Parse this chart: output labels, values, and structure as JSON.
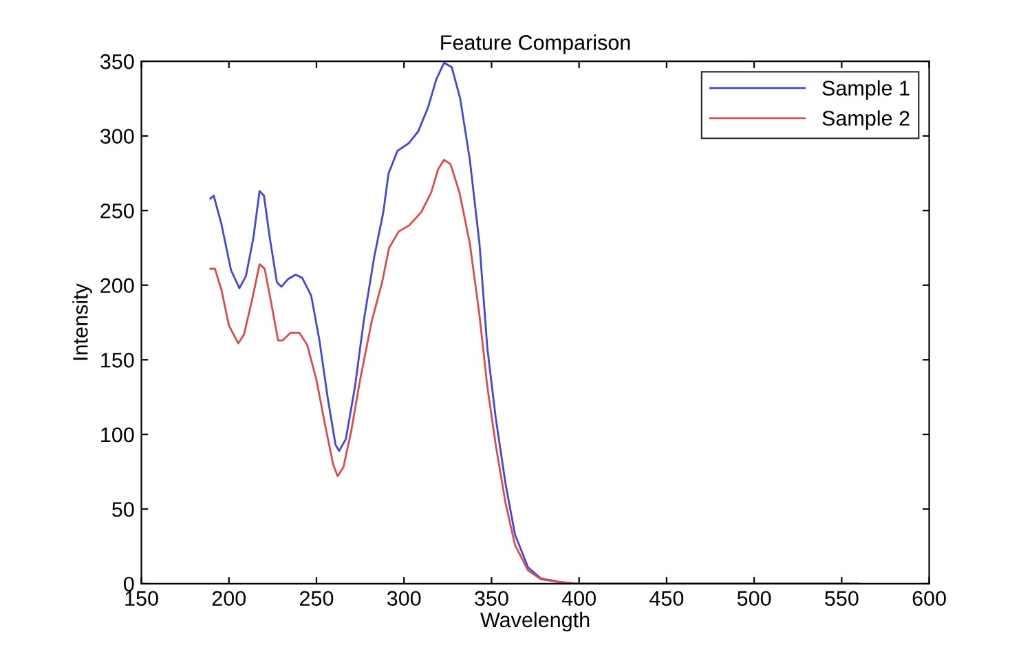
{
  "chart_data": {
    "type": "line",
    "title": "Feature Comparison",
    "xlabel": "Wavelength",
    "ylabel": "Intensity",
    "xlim": [
      150,
      600
    ],
    "xticks": [
      150,
      200,
      250,
      300,
      350,
      400,
      450,
      500,
      550,
      600
    ],
    "ylim": [
      0,
      350
    ],
    "yticks": [
      0,
      50,
      100,
      150,
      200,
      250,
      300,
      350
    ],
    "grid": false,
    "legend": "top right",
    "marker": "none",
    "line_style": "solid",
    "series": [
      {
        "name": "Sample 1",
        "color": "#4444d8",
        "x": [
          189.4,
          191.3,
          195.7,
          201.2,
          206,
          209.7,
          214,
          217.5,
          220,
          223.3,
          227.4,
          230,
          233.7,
          238,
          241.8,
          247,
          251.7,
          256.5,
          260.9,
          263,
          266.8,
          272,
          277,
          283,
          288.2,
          291.2,
          296.3,
          302.6,
          308.1,
          313.7,
          318.5,
          322.9,
          327.3,
          332.1,
          337.6,
          343.1,
          347.6,
          352.4,
          358,
          363.4,
          370.8,
          378.2,
          385.5,
          389.2,
          400,
          560
        ],
        "values": [
          258,
          260,
          241,
          210,
          198,
          206,
          232,
          263,
          260,
          232,
          202,
          199,
          204,
          207,
          205,
          193,
          163,
          124,
          93,
          89,
          97,
          132,
          176,
          219,
          249,
          275,
          290,
          295,
          303,
          319,
          338,
          349,
          346,
          325,
          284,
          228,
          158,
          111,
          67,
          33,
          11,
          3.5,
          2,
          1,
          0,
          0
        ]
      },
      {
        "name": "Sample 2",
        "color": "#d84c4c",
        "x": [
          189.4,
          192,
          195.7,
          200,
          205.3,
          208.6,
          213,
          217.5,
          220.4,
          224,
          228.1,
          230.7,
          235.1,
          240.3,
          244.7,
          249.9,
          255,
          259.5,
          262.1,
          265.4,
          269.8,
          275,
          281.6,
          287.5,
          291.5,
          297,
          302.9,
          309.9,
          315.5,
          319.6,
          322.9,
          326.6,
          331.7,
          337.6,
          343.1,
          347.6,
          352.4,
          358,
          363.4,
          370.8,
          378.2,
          389.2,
          400,
          560
        ],
        "values": [
          211,
          211,
          197,
          173,
          161,
          167,
          189,
          214,
          211,
          189,
          163,
          163,
          168,
          168,
          160,
          137,
          106,
          80,
          72,
          78,
          102,
          137,
          176,
          202,
          225,
          236,
          240,
          249,
          262,
          278,
          284,
          281,
          262,
          228,
          180,
          132,
          93,
          54,
          26,
          9,
          3,
          1,
          0,
          0
        ]
      }
    ]
  }
}
